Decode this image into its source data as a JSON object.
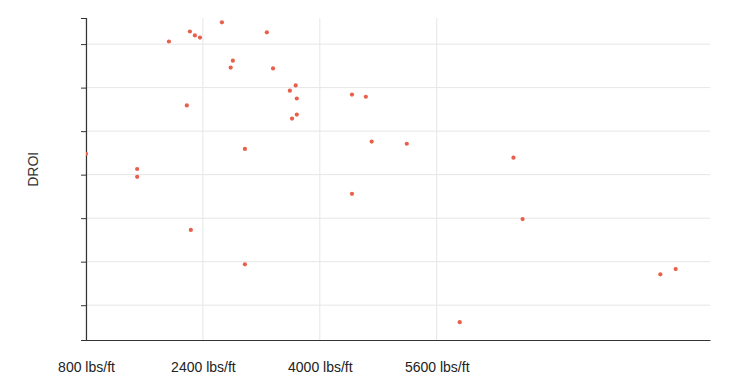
{
  "chart_data": {
    "type": "scatter",
    "y_label": "DROI",
    "color": "#e8604c",
    "marker": "circle",
    "grid": true,
    "tick_labels": "x",
    "xlim": [
      800,
      9340
    ],
    "xticks": [
      {
        "value": 800,
        "label": "800 lbs/ft"
      },
      {
        "value": 2400,
        "label": "2400 lbs/ft"
      },
      {
        "value": 4000,
        "label": "4000 lbs/ft"
      },
      {
        "value": 5600,
        "label": "5600 lbs/ft"
      }
    ],
    "ylim": [
      -0.8,
      6.6
    ],
    "yticks": [
      0,
      1,
      2,
      3,
      4,
      5,
      6
    ],
    "x": [
      800,
      1500,
      1500,
      1935,
      2222,
      2290,
      2360,
      2660,
      2180,
      2235,
      2810,
      2780,
      3275,
      3360,
      2975,
      2975,
      3590,
      3670,
      3685,
      3685,
      3620,
      4440,
      4630,
      4440,
      4710,
      5190,
      5915,
      6650,
      6775,
      8660,
      8870
    ],
    "values": [
      3.48,
      3.13,
      2.95,
      6.06,
      6.29,
      6.2,
      6.15,
      6.5,
      4.59,
      1.73,
      5.62,
      5.46,
      6.27,
      5.44,
      3.59,
      0.94,
      4.93,
      5.05,
      4.75,
      4.38,
      4.29,
      4.84,
      4.79,
      2.56,
      3.76,
      3.71,
      -0.39,
      3.39,
      1.98,
      0.71,
      0.83
    ]
  }
}
